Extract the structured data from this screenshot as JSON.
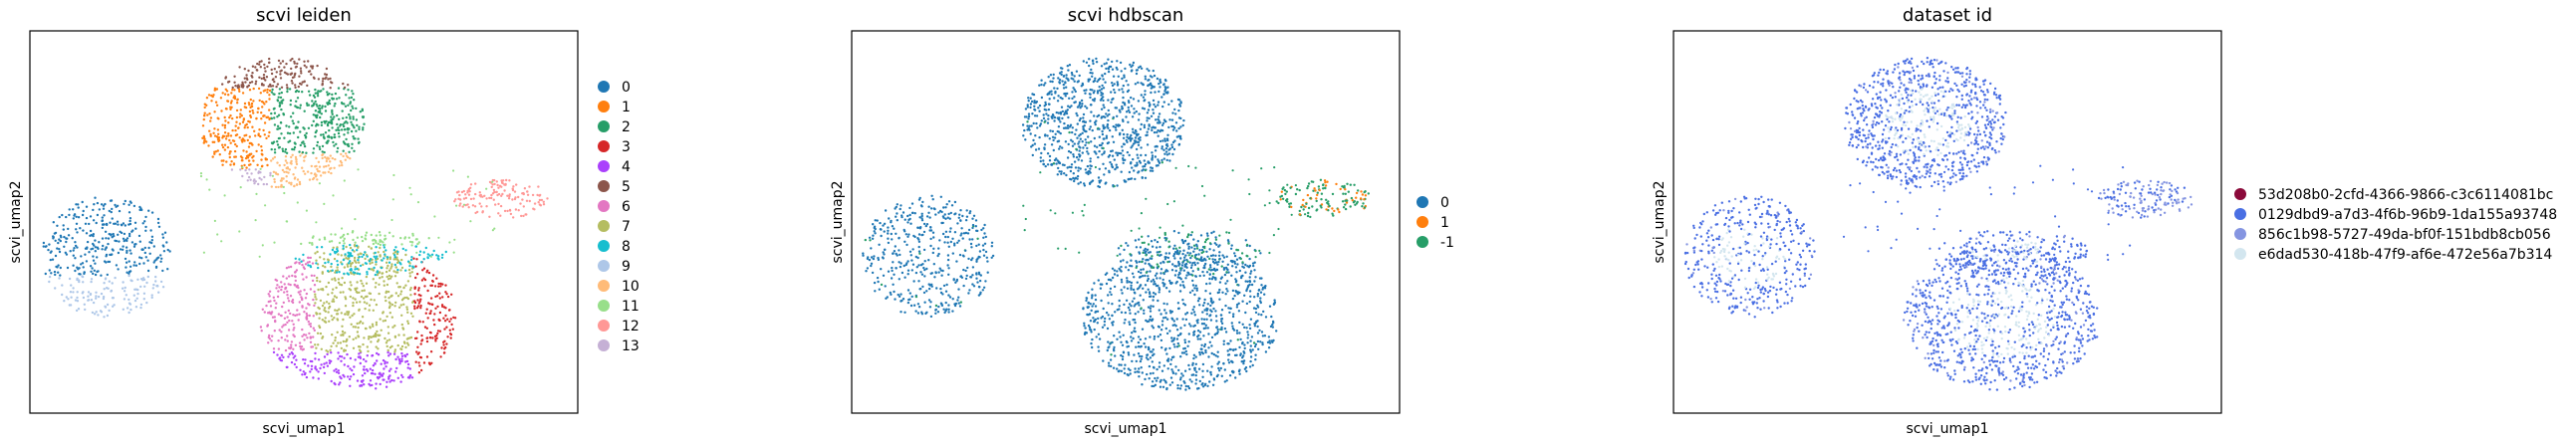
{
  "chart_data": [
    {
      "type": "scatter",
      "title": "scvi leiden",
      "xlabel": "scvi_umap1",
      "ylabel": "scvi_umap2",
      "grid": false,
      "legend_position": "right",
      "legend": [
        {
          "label": "0",
          "color": "#1f77b4"
        },
        {
          "label": "1",
          "color": "#ff7f0e"
        },
        {
          "label": "2",
          "color": "#279e68"
        },
        {
          "label": "3",
          "color": "#d62728"
        },
        {
          "label": "4",
          "color": "#aa40fc"
        },
        {
          "label": "5",
          "color": "#8c564b"
        },
        {
          "label": "6",
          "color": "#e377c2"
        },
        {
          "label": "7",
          "color": "#b5bd61"
        },
        {
          "label": "8",
          "color": "#17becf"
        },
        {
          "label": "9",
          "color": "#aec7e8"
        },
        {
          "label": "10",
          "color": "#ffbb78"
        },
        {
          "label": "11",
          "color": "#98df8a"
        },
        {
          "label": "12",
          "color": "#ff9896"
        },
        {
          "label": "13",
          "color": "#c5b0d5"
        }
      ]
    },
    {
      "type": "scatter",
      "title": "scvi hdbscan",
      "xlabel": "scvi_umap1",
      "ylabel": "scvi_umap2",
      "grid": false,
      "legend_position": "right",
      "legend": [
        {
          "label": "0",
          "color": "#1f77b4"
        },
        {
          "label": "1",
          "color": "#ff7f0e"
        },
        {
          "label": "-1",
          "color": "#279e68"
        }
      ]
    },
    {
      "type": "scatter",
      "title": "dataset id",
      "xlabel": "scvi_umap1",
      "ylabel": "scvi_umap2",
      "grid": false,
      "legend_position": "right",
      "legend": [
        {
          "label": "53d208b0-2cfd-4366-9866-c3c6114081bc",
          "color": "#8b0a3a"
        },
        {
          "label": "0129dbd9-a7d3-4f6b-96b9-1da155a93748",
          "color": "#4a6fe3"
        },
        {
          "label": "856c1b98-5727-49da-bf0f-151bdb8cb056",
          "color": "#8595e1"
        },
        {
          "label": "e6dad530-418b-47f9-af6e-472e56a7b314",
          "color": "#d3e6ef"
        }
      ]
    }
  ]
}
